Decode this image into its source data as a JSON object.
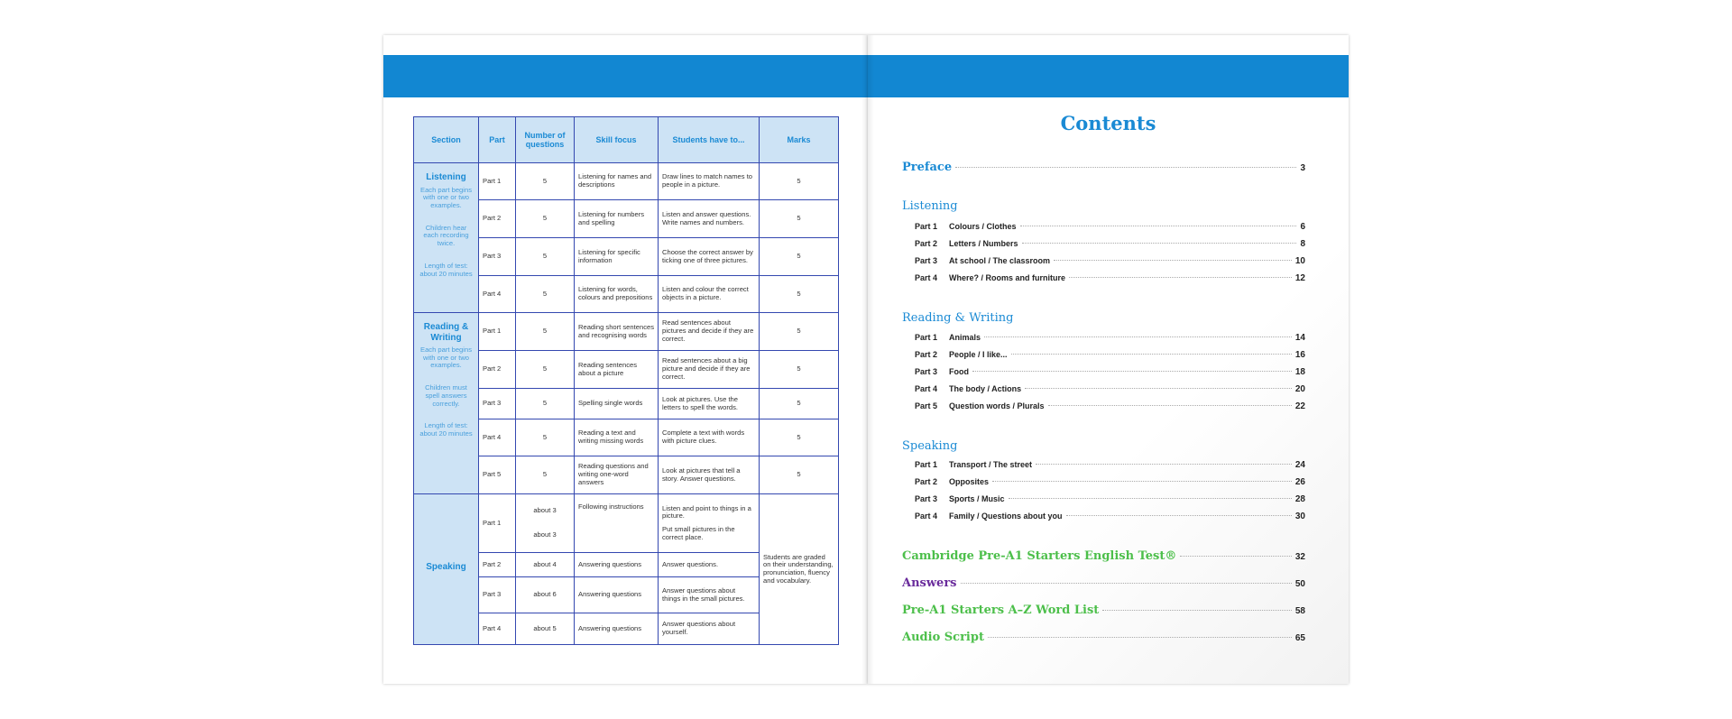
{
  "table": {
    "headers": [
      "Section",
      "Part",
      "Number of questions",
      "Skill focus",
      "Students have to...",
      "Marks"
    ],
    "sections": [
      {
        "title": "Listening",
        "notes": [
          "Each part begins with one or two examples.",
          "Children hear each recording twice.",
          "Length of test: about 20 minutes"
        ],
        "rows": [
          [
            "Part 1",
            "5",
            "Listening for names and descriptions",
            "Draw lines to match names to people in a picture.",
            "5"
          ],
          [
            "Part 2",
            "5",
            "Listening for numbers and spelling",
            "Listen and answer questions. Write names and numbers.",
            "5"
          ],
          [
            "Part 3",
            "5",
            "Listening for specific information",
            "Choose the correct answer by ticking one of three pictures.",
            "5"
          ],
          [
            "Part 4",
            "5",
            "Listening for words, colours and prepositions",
            "Listen and colour the correct objects in a picture.",
            "5"
          ]
        ]
      },
      {
        "title": "Reading & Writing",
        "notes": [
          "Each part begins with one or two examples.",
          "Children must spell answers correctly.",
          "Length of test: about 20 minutes"
        ],
        "rows": [
          [
            "Part 1",
            "5",
            "Reading short sentences and recognising words",
            "Read sentences about pictures and decide if they are correct.",
            "5"
          ],
          [
            "Part 2",
            "5",
            "Reading sentences about a picture",
            "Read sentences about a big picture and decide if they are correct.",
            "5"
          ],
          [
            "Part 3",
            "5",
            "Spelling single words",
            "Look at pictures. Use the letters to spell the words.",
            "5"
          ],
          [
            "Part 4",
            "5",
            "Reading a text and writing missing words",
            "Complete a text with words with picture clues.",
            "5"
          ],
          [
            "Part 5",
            "5",
            "Reading questions and writing one-word answers",
            "Look at pictures that tell a story. Answer questions.",
            "5"
          ]
        ]
      },
      {
        "title": "Speaking",
        "marks": "Students are graded on their understanding, pronunciation, fluency and vocabulary.",
        "rows": [
          [
            "Part 1",
            "about 3",
            "Following instructions",
            "Listen and point to things in a picture.",
            "about 3",
            "Put small pictures in the correct place."
          ],
          [
            "Part 2",
            "about 4",
            "Answering questions",
            "Answer questions."
          ],
          [
            "Part 3",
            "about 6",
            "Answering questions",
            "Answer questions about things in the small pictures."
          ],
          [
            "Part 4",
            "about 5",
            "Answering questions",
            "Answer questions about yourself."
          ]
        ]
      }
    ]
  },
  "contents": {
    "title": "Contents",
    "preface": {
      "label": "Preface",
      "page": "3"
    },
    "sections": [
      {
        "title": "Listening",
        "items": [
          [
            "Part 1",
            "Colours / Clothes",
            "6"
          ],
          [
            "Part 2",
            "Letters / Numbers",
            "8"
          ],
          [
            "Part 3",
            "At school / The classroom",
            "10"
          ],
          [
            "Part 4",
            "Where? / Rooms and furniture",
            "12"
          ]
        ]
      },
      {
        "title": "Reading & Writing",
        "items": [
          [
            "Part 1",
            "Animals",
            "14"
          ],
          [
            "Part 2",
            "People / I like...",
            "16"
          ],
          [
            "Part 3",
            "Food",
            "18"
          ],
          [
            "Part 4",
            "The body / Actions",
            "20"
          ],
          [
            "Part 5",
            "Question words / Plurals",
            "22"
          ]
        ]
      },
      {
        "title": "Speaking",
        "items": [
          [
            "Part 1",
            "Transport / The street",
            "24"
          ],
          [
            "Part 2",
            "Opposites",
            "26"
          ],
          [
            "Part 3",
            "Sports / Music",
            "28"
          ],
          [
            "Part 4",
            "Family / Questions about you",
            "30"
          ]
        ]
      }
    ],
    "extras": [
      {
        "label": "Cambridge Pre-A1 Starters English Test®",
        "page": "32",
        "color": "#4cbf4a"
      },
      {
        "label": "Answers",
        "page": "50",
        "color": "#6a2c9c"
      },
      {
        "label": "Pre-A1 Starters A–Z Word List",
        "page": "58",
        "color": "#4cbf4a"
      },
      {
        "label": "Audio Script",
        "page": "65",
        "color": "#4cbf4a"
      }
    ]
  },
  "colors": {
    "brand_blue": "#1287d2",
    "heading_blue": "#1a8ad4",
    "cell_blue": "#cde3f5",
    "border": "#3448b0"
  }
}
